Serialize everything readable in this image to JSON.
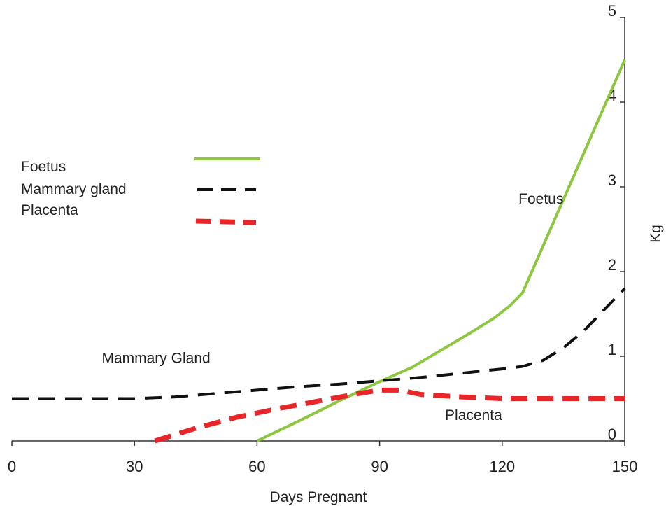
{
  "chart_data": {
    "type": "line",
    "title": "",
    "xlabel": "Days Pregnant",
    "ylabel": "Kg",
    "xlim": [
      0,
      150
    ],
    "ylim": [
      0,
      5
    ],
    "x_ticks": [
      "0",
      "30",
      "60",
      "90",
      "120",
      "150"
    ],
    "y_ticks": [
      "0",
      "1",
      "2",
      "3",
      "4",
      "5"
    ],
    "y_axis_position": "right",
    "grid": false,
    "legend_placement": "left",
    "legend": [
      "Foetus",
      "Mammary gland",
      "Placenta"
    ],
    "series": [
      {
        "name": "Foetus",
        "color": "#8dc63f",
        "style": "solid",
        "x": [
          60,
          70,
          80,
          90,
          98,
          105,
          112,
          118,
          122,
          125,
          130,
          135,
          140,
          145,
          150
        ],
        "y": [
          0.0,
          0.23,
          0.47,
          0.7,
          0.87,
          1.07,
          1.27,
          1.45,
          1.6,
          1.75,
          2.3,
          2.85,
          3.4,
          3.95,
          4.5
        ]
      },
      {
        "name": "Mammary gland",
        "color": "#111111",
        "style": "dashed",
        "x": [
          0,
          10,
          20,
          30,
          40,
          50,
          60,
          70,
          80,
          90,
          100,
          110,
          120,
          125,
          130,
          135,
          140,
          145,
          150
        ],
        "y": [
          0.5,
          0.5,
          0.5,
          0.5,
          0.52,
          0.56,
          0.6,
          0.64,
          0.67,
          0.71,
          0.75,
          0.8,
          0.85,
          0.88,
          0.95,
          1.1,
          1.3,
          1.55,
          1.8
        ]
      },
      {
        "name": "Placenta",
        "color": "#e8262a",
        "style": "dashed",
        "x": [
          35,
          45,
          55,
          65,
          75,
          85,
          90,
          95,
          100,
          110,
          120,
          130,
          140,
          150
        ],
        "y": [
          0.0,
          0.15,
          0.28,
          0.38,
          0.47,
          0.56,
          0.6,
          0.6,
          0.55,
          0.52,
          0.5,
          0.5,
          0.5,
          0.5
        ]
      }
    ],
    "annotations": [
      {
        "text": "Foetus",
        "x": 124,
        "y": 2.8
      },
      {
        "text": "Mammary Gland",
        "x": 22,
        "y": 0.92
      },
      {
        "text": "Placenta",
        "x": 106,
        "y": 0.25
      }
    ]
  }
}
